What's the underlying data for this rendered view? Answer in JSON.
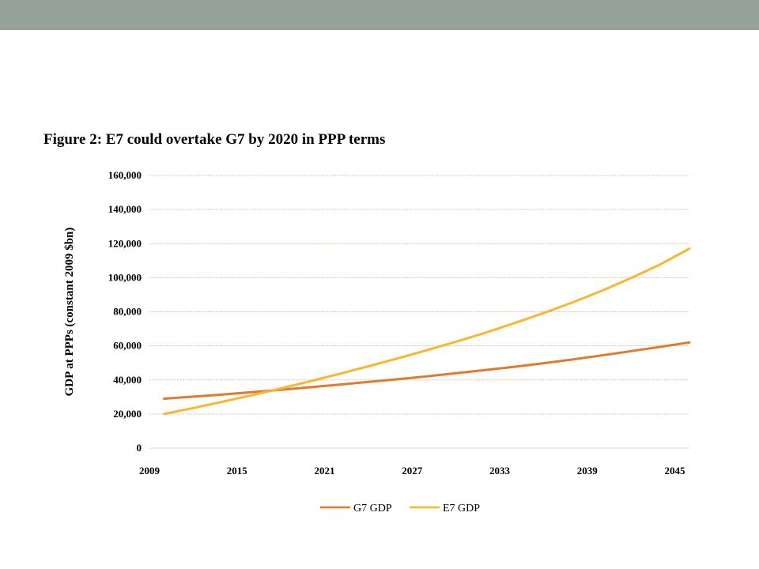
{
  "slide": {
    "header_color": "#95a39a"
  },
  "chart_data": {
    "type": "line",
    "title": "Figure 2: E7 could overtake G7 by 2020 in PPP terms",
    "xlabel": "",
    "ylabel": "GDP at PPPs (constant 2009 $bn)",
    "xlim": [
      2009,
      2046
    ],
    "ylim": [
      0,
      160000
    ],
    "x_ticks": [
      2009,
      2015,
      2021,
      2027,
      2033,
      2039,
      2045
    ],
    "x_tick_labels": [
      "2009",
      "2015",
      "2021",
      "2027",
      "2033",
      "2039",
      "2045"
    ],
    "y_ticks": [
      0,
      20000,
      40000,
      60000,
      80000,
      100000,
      120000,
      140000,
      160000
    ],
    "y_tick_labels": [
      "0",
      "20,000",
      "40,000",
      "60,000",
      "80,000",
      "100,000",
      "120,000",
      "140,000",
      "160,000"
    ],
    "grid": true,
    "legend_position": "bottom",
    "series": [
      {
        "name": "G7 GDP",
        "color": "#e07a2e",
        "x": [
          2010,
          2012,
          2014,
          2016,
          2018,
          2020,
          2022,
          2024,
          2026,
          2028,
          2030,
          2032,
          2034,
          2036,
          2038,
          2040,
          2042,
          2044,
          2046
        ],
        "y": [
          29000,
          30200,
          31400,
          32800,
          34200,
          35700,
          37200,
          38800,
          40400,
          42100,
          43900,
          45800,
          47700,
          49800,
          52000,
          54400,
          56900,
          59400,
          62000
        ]
      },
      {
        "name": "E7 GDP",
        "color": "#f9b62e",
        "x": [
          2010,
          2012,
          2014,
          2016,
          2018,
          2020,
          2022,
          2024,
          2026,
          2028,
          2030,
          2032,
          2034,
          2036,
          2038,
          2040,
          2042,
          2044,
          2046
        ],
        "y": [
          20000,
          23500,
          27200,
          31000,
          35000,
          39200,
          43500,
          48000,
          52600,
          57400,
          62400,
          67600,
          73300,
          79200,
          85500,
          92300,
          99800,
          107800,
          117000
        ]
      }
    ]
  }
}
